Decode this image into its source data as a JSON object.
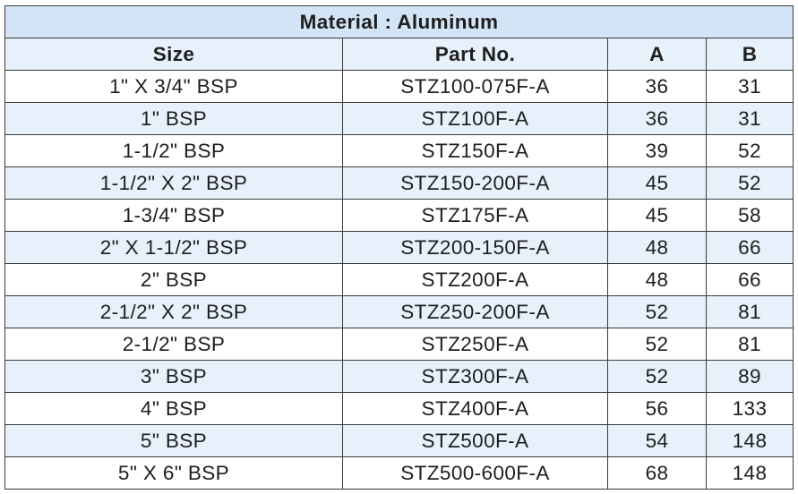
{
  "table": {
    "title": "Material : Aluminum",
    "headers": {
      "size": "Size",
      "part_no": "Part No.",
      "a": "A",
      "b": "B"
    },
    "rows": [
      {
        "size": "1\" X 3/4\" BSP",
        "part_no": "STZ100-075F-A",
        "a": "36",
        "b": "31"
      },
      {
        "size": "1\" BSP",
        "part_no": "STZ100F-A",
        "a": "36",
        "b": "31"
      },
      {
        "size": "1-1/2\" BSP",
        "part_no": "STZ150F-A",
        "a": "39",
        "b": "52"
      },
      {
        "size": "1-1/2\" X 2\" BSP",
        "part_no": "STZ150-200F-A",
        "a": "45",
        "b": "52"
      },
      {
        "size": "1-3/4\" BSP",
        "part_no": "STZ175F-A",
        "a": "45",
        "b": "58"
      },
      {
        "size": "2\" X 1-1/2\" BSP",
        "part_no": "STZ200-150F-A",
        "a": "48",
        "b": "66"
      },
      {
        "size": "2\" BSP",
        "part_no": "STZ200F-A",
        "a": "48",
        "b": "66"
      },
      {
        "size": "2-1/2\" X 2\" BSP",
        "part_no": "STZ250-200F-A",
        "a": "52",
        "b": "81"
      },
      {
        "size": "2-1/2\" BSP",
        "part_no": "STZ250F-A",
        "a": "52",
        "b": "81"
      },
      {
        "size": "3\" BSP",
        "part_no": "STZ300F-A",
        "a": "52",
        "b": "89"
      },
      {
        "size": "4\" BSP",
        "part_no": "STZ400F-A",
        "a": "56",
        "b": "133"
      },
      {
        "size": "5\" BSP",
        "part_no": "STZ500F-A",
        "a": "54",
        "b": "148"
      },
      {
        "size": "5\" X 6\" BSP",
        "part_no": "STZ500-600F-A",
        "a": "68",
        "b": "148"
      }
    ]
  },
  "colors": {
    "title_bg": "#d3e4f6",
    "band_bg": "#e7f1fb",
    "border": "#3a3a3a",
    "text": "#1e1e1e"
  }
}
